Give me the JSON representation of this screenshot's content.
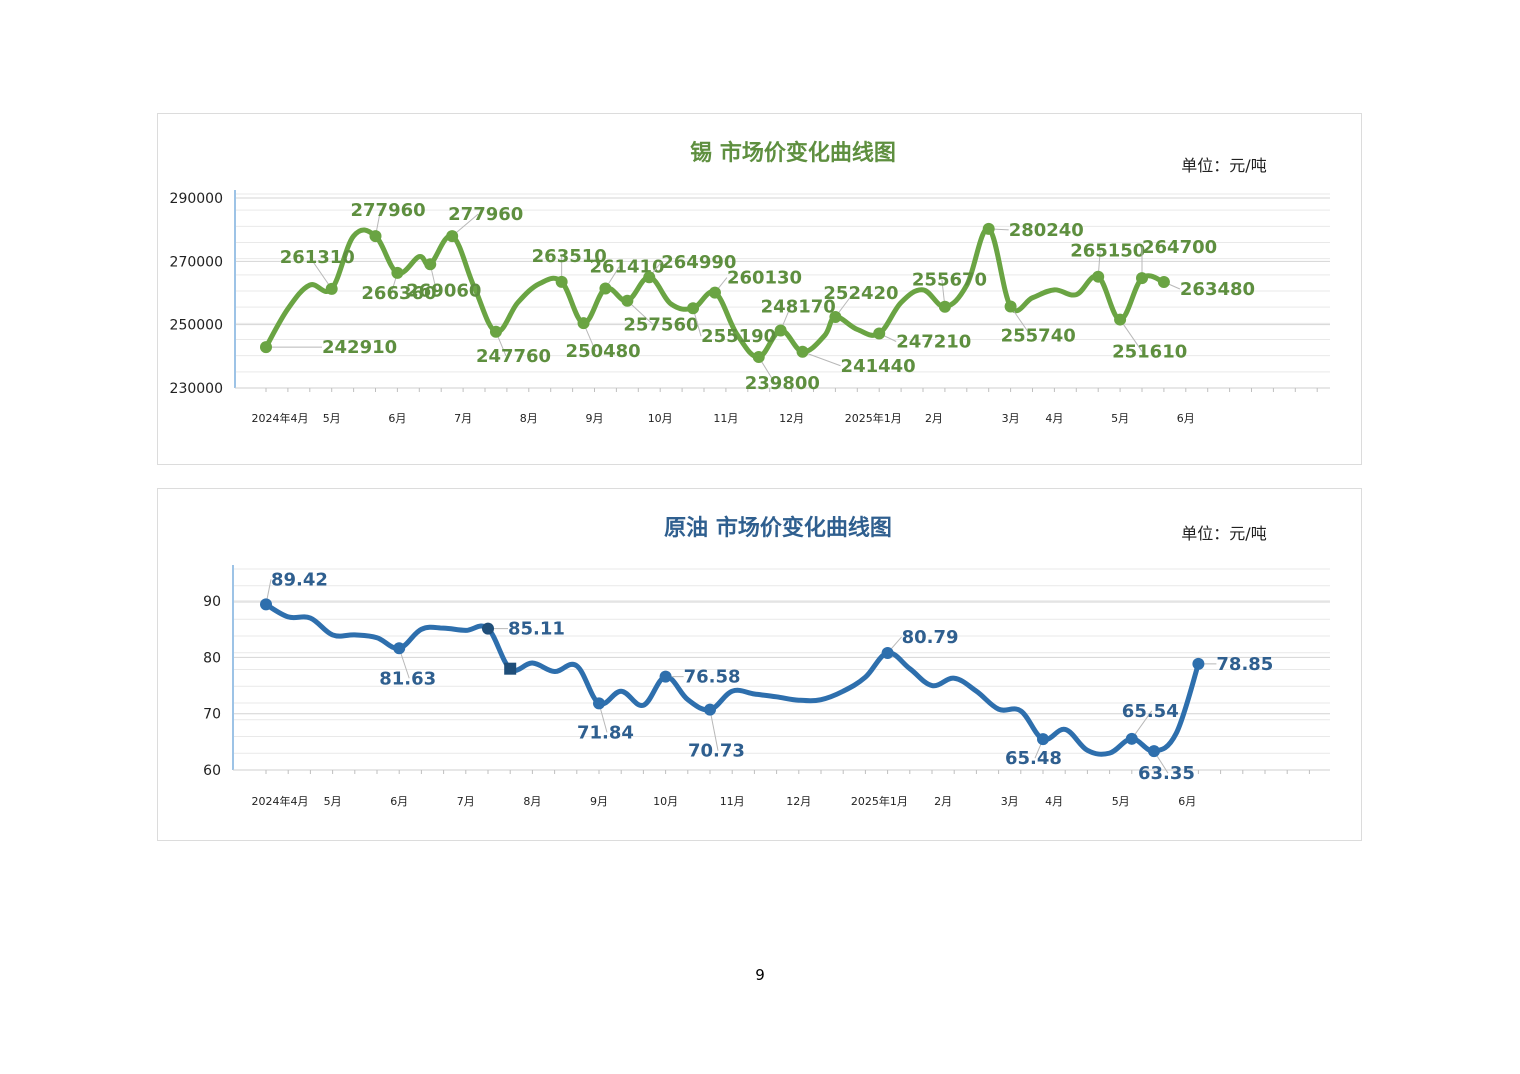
{
  "page": {
    "number": "9"
  },
  "chart_data": [
    {
      "id": "tin",
      "type": "line",
      "title": "锡  市场价变化曲线图",
      "unit": "单位：元/吨",
      "color": "#6aa443",
      "title_color": "#5e8f3f",
      "label_color": "#5e8f3f",
      "ylim": [
        230000,
        290000
      ],
      "yticks": [
        "230000",
        "250000",
        "270000",
        "290000"
      ],
      "xticks": [
        "2024年4月",
        "5月",
        "6月",
        "7月",
        "8月",
        "9月",
        "10月",
        "11月",
        "12月",
        "2025年1月",
        "2月",
        "3月",
        "4月",
        "5月",
        "6月"
      ],
      "grid": true,
      "legend": "none",
      "points": [
        {
          "i": 0,
          "y": 242910,
          "label": "242910"
        },
        {
          "i": 6,
          "y": 261310,
          "label": "261310"
        },
        {
          "i": 10,
          "y": 277960,
          "label": "277960"
        },
        {
          "i": 12,
          "y": 266360,
          "label": "266360"
        },
        {
          "i": 15,
          "y": 269060,
          "label": "269060"
        },
        {
          "i": 17,
          "y": 277960,
          "label": "277960"
        },
        {
          "i": 21,
          "y": 247760,
          "label": "247760"
        },
        {
          "i": 27,
          "y": 263510,
          "label": "263510"
        },
        {
          "i": 29,
          "y": 250480,
          "label": "250480"
        },
        {
          "i": 31,
          "y": 261410,
          "label": "261410"
        },
        {
          "i": 33,
          "y": 257560,
          "label": "257560"
        },
        {
          "i": 35,
          "y": 264990,
          "label": "264990"
        },
        {
          "i": 39,
          "y": 255190,
          "label": "255190"
        },
        {
          "i": 41,
          "y": 260130,
          "label": "260130"
        },
        {
          "i": 45,
          "y": 239800,
          "label": "239800"
        },
        {
          "i": 47,
          "y": 248170,
          "label": "248170"
        },
        {
          "i": 49,
          "y": 241440,
          "label": "241440"
        },
        {
          "i": 52,
          "y": 252420,
          "label": "252420"
        },
        {
          "i": 56,
          "y": 247210,
          "label": "247210"
        },
        {
          "i": 62,
          "y": 255670,
          "label": "255670"
        },
        {
          "i": 66,
          "y": 280240,
          "label": "280240"
        },
        {
          "i": 68,
          "y": 255740,
          "label": "255740"
        },
        {
          "i": 76,
          "y": 265150,
          "label": "265150"
        },
        {
          "i": 78,
          "y": 251610,
          "label": "251610"
        },
        {
          "i": 80,
          "y": 264700,
          "label": "264700"
        },
        {
          "i": 82,
          "y": 263480,
          "label": "263480"
        }
      ],
      "curve": [
        [
          0,
          242910
        ],
        [
          2,
          255000
        ],
        [
          4,
          262500
        ],
        [
          6,
          261310
        ],
        [
          8,
          278000
        ],
        [
          10,
          277960
        ],
        [
          12,
          266360
        ],
        [
          14,
          271500
        ],
        [
          15,
          269060
        ],
        [
          17,
          277960
        ],
        [
          19,
          262000
        ],
        [
          21,
          247760
        ],
        [
          23,
          257000
        ],
        [
          25,
          263000
        ],
        [
          27,
          263510
        ],
        [
          29,
          250480
        ],
        [
          31,
          261410
        ],
        [
          33,
          257560
        ],
        [
          35,
          264990
        ],
        [
          37,
          256500
        ],
        [
          39,
          255190
        ],
        [
          41,
          260130
        ],
        [
          43,
          247000
        ],
        [
          45,
          239800
        ],
        [
          47,
          248170
        ],
        [
          49,
          241440
        ],
        [
          51,
          246500
        ],
        [
          52,
          252420
        ],
        [
          54,
          248500
        ],
        [
          56,
          247210
        ],
        [
          58,
          257000
        ],
        [
          60,
          261000
        ],
        [
          62,
          255670
        ],
        [
          64,
          262500
        ],
        [
          66,
          280240
        ],
        [
          68,
          255740
        ],
        [
          70,
          258500
        ],
        [
          72,
          261000
        ],
        [
          74,
          259500
        ],
        [
          76,
          265150
        ],
        [
          78,
          251610
        ],
        [
          80,
          264700
        ],
        [
          82,
          263480
        ]
      ]
    },
    {
      "id": "oil",
      "type": "line",
      "title": "原油  市场价变化曲线图",
      "unit": "单位：元/吨",
      "color": "#2e6fad",
      "title_color": "#2f5f8f",
      "label_color": "#2f5f8f",
      "ylim": [
        60,
        95
      ],
      "yticks": [
        "60",
        "70",
        "80",
        "90"
      ],
      "xticks": [
        "2024年4月",
        "5月",
        "6月",
        "7月",
        "8月",
        "9月",
        "10月",
        "11月",
        "12月",
        "2025年1月",
        "2月",
        "3月",
        "4月",
        "5月",
        "6月"
      ],
      "grid": true,
      "legend": "none",
      "points": [
        {
          "i": 0,
          "y": 89.42,
          "label": "89.42"
        },
        {
          "i": 12,
          "y": 81.63,
          "label": "81.63"
        },
        {
          "i": 20,
          "y": 85.11,
          "label": "85.11"
        },
        {
          "i": 22,
          "y": 78.0,
          "label": "",
          "marker": "square"
        },
        {
          "i": 30,
          "y": 71.84,
          "label": "71.84"
        },
        {
          "i": 36,
          "y": 76.58,
          "label": "76.58"
        },
        {
          "i": 40,
          "y": 70.73,
          "label": "70.73"
        },
        {
          "i": 56,
          "y": 80.79,
          "label": "80.79"
        },
        {
          "i": 70,
          "y": 65.48,
          "label": "65.48"
        },
        {
          "i": 78,
          "y": 65.54,
          "label": "65.54"
        },
        {
          "i": 80,
          "y": 63.35,
          "label": "63.35"
        },
        {
          "i": 84,
          "y": 78.85,
          "label": "78.85"
        }
      ],
      "curve": [
        [
          0,
          89.42
        ],
        [
          2,
          87.2
        ],
        [
          4,
          87.0
        ],
        [
          6,
          84.0
        ],
        [
          8,
          84.0
        ],
        [
          10,
          83.5
        ],
        [
          12,
          81.63
        ],
        [
          14,
          85.0
        ],
        [
          16,
          85.2
        ],
        [
          18,
          84.8
        ],
        [
          20,
          85.11
        ],
        [
          22,
          78.0
        ],
        [
          24,
          79.0
        ],
        [
          26,
          77.5
        ],
        [
          28,
          78.5
        ],
        [
          30,
          71.84
        ],
        [
          32,
          74.0
        ],
        [
          34,
          71.5
        ],
        [
          36,
          76.58
        ],
        [
          38,
          72.5
        ],
        [
          40,
          70.73
        ],
        [
          42,
          74.0
        ],
        [
          44,
          73.5
        ],
        [
          46,
          73.0
        ],
        [
          48,
          72.4
        ],
        [
          50,
          72.5
        ],
        [
          52,
          74.0
        ],
        [
          54,
          76.5
        ],
        [
          56,
          80.79
        ],
        [
          58,
          78.0
        ],
        [
          60,
          75.0
        ],
        [
          62,
          76.3
        ],
        [
          64,
          74.0
        ],
        [
          66,
          70.8
        ],
        [
          68,
          70.5
        ],
        [
          70,
          65.48
        ],
        [
          72,
          67.2
        ],
        [
          74,
          63.5
        ],
        [
          76,
          63.0
        ],
        [
          78,
          65.54
        ],
        [
          80,
          63.35
        ],
        [
          82,
          66.5
        ],
        [
          84,
          78.85
        ]
      ]
    }
  ]
}
